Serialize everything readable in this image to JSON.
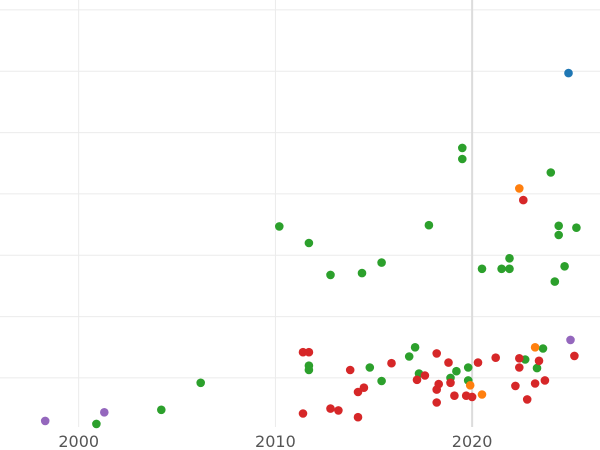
{
  "chart_data": {
    "type": "scatter",
    "title": "",
    "xlabel": "",
    "ylabel": "",
    "xlim": [
      1996,
      2026.5
    ],
    "ylim": [
      -0.8,
      5.95
    ],
    "grid": true,
    "legend": "none",
    "x_ticks": [
      {
        "value": 2000,
        "label": "2000"
      },
      {
        "value": 2010,
        "label": "2010"
      },
      {
        "value": 2020,
        "label": "2020"
      }
    ],
    "y_gridlines": [
      0,
      1,
      2,
      3,
      4,
      5,
      6
    ],
    "series": [
      {
        "color": "#2ca02c",
        "points": [
          {
            "x": 2000.9,
            "y": -0.75
          },
          {
            "x": 2004.2,
            "y": -0.52
          },
          {
            "x": 2006.2,
            "y": -0.08
          },
          {
            "x": 2010.2,
            "y": 2.47
          },
          {
            "x": 2011.7,
            "y": 2.2
          },
          {
            "x": 2011.7,
            "y": 0.2
          },
          {
            "x": 2011.7,
            "y": 0.13
          },
          {
            "x": 2012.8,
            "y": 1.68
          },
          {
            "x": 2014.4,
            "y": 1.71
          },
          {
            "x": 2014.8,
            "y": 0.17
          },
          {
            "x": 2015.4,
            "y": -0.05
          },
          {
            "x": 2015.4,
            "y": 1.88
          },
          {
            "x": 2016.8,
            "y": 0.35
          },
          {
            "x": 2017.1,
            "y": 0.5
          },
          {
            "x": 2017.3,
            "y": 0.07
          },
          {
            "x": 2017.8,
            "y": 2.49
          },
          {
            "x": 2018.9,
            "y": 0.0
          },
          {
            "x": 2019.2,
            "y": 0.11
          },
          {
            "x": 2019.5,
            "y": 3.57
          },
          {
            "x": 2019.5,
            "y": 3.75
          },
          {
            "x": 2019.8,
            "y": 0.17
          },
          {
            "x": 2019.8,
            "y": -0.04
          },
          {
            "x": 2020.5,
            "y": 1.78
          },
          {
            "x": 2021.5,
            "y": 1.78
          },
          {
            "x": 2021.9,
            "y": 1.95
          },
          {
            "x": 2021.9,
            "y": 1.78
          },
          {
            "x": 2022.7,
            "y": 0.3
          },
          {
            "x": 2023.3,
            "y": 0.16
          },
          {
            "x": 2023.6,
            "y": 0.48
          },
          {
            "x": 2024.0,
            "y": 3.35
          },
          {
            "x": 2024.2,
            "y": 1.57
          },
          {
            "x": 2024.4,
            "y": 2.48
          },
          {
            "x": 2024.4,
            "y": 2.33
          },
          {
            "x": 2024.7,
            "y": 1.82
          },
          {
            "x": 2025.3,
            "y": 2.45
          }
        ]
      },
      {
        "color": "#d62728",
        "points": [
          {
            "x": 2011.4,
            "y": 0.42
          },
          {
            "x": 2011.7,
            "y": 0.42
          },
          {
            "x": 2011.4,
            "y": -0.58
          },
          {
            "x": 2012.8,
            "y": -0.5
          },
          {
            "x": 2013.2,
            "y": -0.53
          },
          {
            "x": 2013.8,
            "y": 0.13
          },
          {
            "x": 2014.2,
            "y": -0.64
          },
          {
            "x": 2014.2,
            "y": -0.23
          },
          {
            "x": 2014.5,
            "y": -0.16
          },
          {
            "x": 2015.9,
            "y": 0.24
          },
          {
            "x": 2017.2,
            "y": -0.03
          },
          {
            "x": 2017.6,
            "y": 0.04
          },
          {
            "x": 2018.2,
            "y": 0.4
          },
          {
            "x": 2018.2,
            "y": -0.19
          },
          {
            "x": 2018.3,
            "y": -0.1
          },
          {
            "x": 2018.2,
            "y": -0.4
          },
          {
            "x": 2018.8,
            "y": 0.25
          },
          {
            "x": 2018.9,
            "y": -0.08
          },
          {
            "x": 2019.1,
            "y": -0.29
          },
          {
            "x": 2019.7,
            "y": -0.29
          },
          {
            "x": 2020.0,
            "y": -0.31
          },
          {
            "x": 2020.3,
            "y": 0.25
          },
          {
            "x": 2021.2,
            "y": 0.33
          },
          {
            "x": 2022.2,
            "y": -0.13
          },
          {
            "x": 2022.4,
            "y": 0.32
          },
          {
            "x": 2022.4,
            "y": 0.17
          },
          {
            "x": 2022.6,
            "y": 2.9
          },
          {
            "x": 2022.8,
            "y": -0.35
          },
          {
            "x": 2023.2,
            "y": -0.09
          },
          {
            "x": 2023.4,
            "y": 0.28
          },
          {
            "x": 2023.7,
            "y": -0.04
          },
          {
            "x": 2025.2,
            "y": 0.36
          }
        ]
      },
      {
        "color": "#ff7f0e",
        "points": [
          {
            "x": 2022.4,
            "y": 3.09
          },
          {
            "x": 2019.9,
            "y": -0.12
          },
          {
            "x": 2020.5,
            "y": -0.27
          },
          {
            "x": 2023.2,
            "y": 0.5
          }
        ]
      },
      {
        "color": "#9467bd",
        "points": [
          {
            "x": 1998.3,
            "y": -0.7
          },
          {
            "x": 2001.3,
            "y": -0.56
          },
          {
            "x": 2025.0,
            "y": 0.62
          }
        ]
      },
      {
        "color": "#1f77b4",
        "points": [
          {
            "x": 2024.9,
            "y": 4.97
          }
        ]
      }
    ]
  }
}
